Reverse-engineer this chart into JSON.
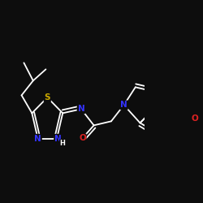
{
  "background_color": "#0d0d0d",
  "bond_color": "#ffffff",
  "atom_colors": {
    "N": "#3333ff",
    "S": "#ccaa00",
    "O": "#dd2222",
    "C": "#ffffff"
  },
  "figsize": [
    2.5,
    2.5
  ],
  "dpi": 100
}
